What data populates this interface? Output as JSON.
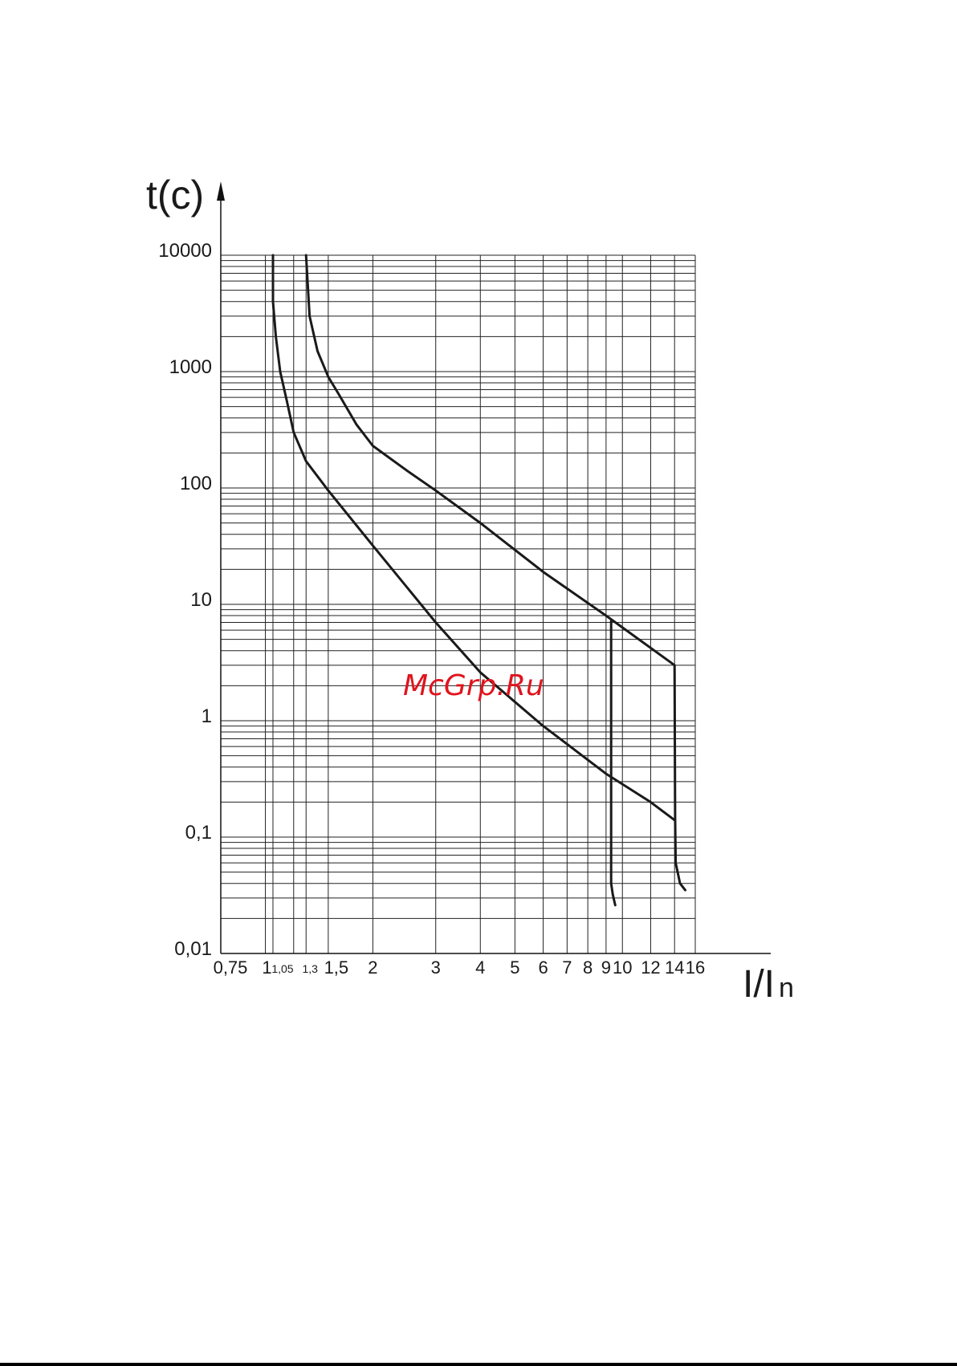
{
  "watermark": "McGrp.Ru",
  "watermark_color": "#e0141e",
  "chart_data": {
    "type": "line",
    "x_scale": "log",
    "y_scale": "log",
    "ylabel": "t(c)",
    "xlabel_main": "I/I",
    "xlabel_sub": "n",
    "xlim": [
      0.75,
      16
    ],
    "ylim": [
      0.01,
      10000
    ],
    "y_ticks": [
      {
        "value": 10000,
        "label": "10000"
      },
      {
        "value": 1000,
        "label": "1000"
      },
      {
        "value": 100,
        "label": "100"
      },
      {
        "value": 10,
        "label": "10"
      },
      {
        "value": 1,
        "label": "1"
      },
      {
        "value": 0.1,
        "label": "0,1"
      },
      {
        "value": 0.01,
        "label": "0,01"
      }
    ],
    "x_ticks": [
      {
        "value": 0.75,
        "label": "0,75"
      },
      {
        "value": 1,
        "label": "1"
      },
      {
        "value": 1.05,
        "label": "1,05",
        "small": true
      },
      {
        "value": 1.3,
        "label": "1,3",
        "small": true
      },
      {
        "value": 1.5,
        "label": "1,5"
      },
      {
        "value": 2,
        "label": "2"
      },
      {
        "value": 3,
        "label": "3"
      },
      {
        "value": 4,
        "label": "4"
      },
      {
        "value": 5,
        "label": "5"
      },
      {
        "value": 6,
        "label": "6"
      },
      {
        "value": 7,
        "label": "7"
      },
      {
        "value": 8,
        "label": "8"
      },
      {
        "value": 9,
        "label": "9"
      },
      {
        "value": 10,
        "label": "10"
      },
      {
        "value": 12,
        "label": "12"
      },
      {
        "value": 14,
        "label": "14"
      },
      {
        "value": 16,
        "label": "16"
      }
    ],
    "grid_x": [
      0.75,
      1,
      1.05,
      1.2,
      1.3,
      1.5,
      2,
      3,
      4,
      5,
      6,
      7,
      8,
      9,
      10,
      12,
      14,
      16
    ],
    "grid": true,
    "series": [
      {
        "points": [
          [
            1.05,
            10000
          ],
          [
            1.05,
            4000
          ],
          [
            1.07,
            2000
          ],
          [
            1.1,
            1000
          ],
          [
            1.15,
            550
          ],
          [
            1.2,
            300
          ],
          [
            1.3,
            170
          ],
          [
            1.5,
            95
          ],
          [
            2,
            32
          ],
          [
            3,
            7
          ],
          [
            4,
            2.6
          ],
          [
            6,
            0.9
          ],
          [
            9,
            0.35
          ],
          [
            12,
            0.2
          ],
          [
            14,
            0.14
          ]
        ]
      },
      {
        "points": [
          [
            1.3,
            10000
          ],
          [
            1.33,
            3000
          ],
          [
            1.4,
            1500
          ],
          [
            1.5,
            900
          ],
          [
            1.6,
            650
          ],
          [
            1.8,
            350
          ],
          [
            2,
            230
          ],
          [
            2.5,
            140
          ],
          [
            3,
            95
          ],
          [
            4,
            50
          ],
          [
            6,
            19
          ],
          [
            9,
            8
          ],
          [
            14,
            3
          ],
          [
            14.05,
            0.15
          ],
          [
            14.1,
            0.06
          ],
          [
            14.5,
            0.04
          ],
          [
            15,
            0.035
          ]
        ]
      },
      {
        "points": [
          [
            9.3,
            7.2
          ],
          [
            9.3,
            0.04
          ],
          [
            9.4,
            0.032
          ],
          [
            9.55,
            0.026
          ]
        ]
      }
    ]
  }
}
